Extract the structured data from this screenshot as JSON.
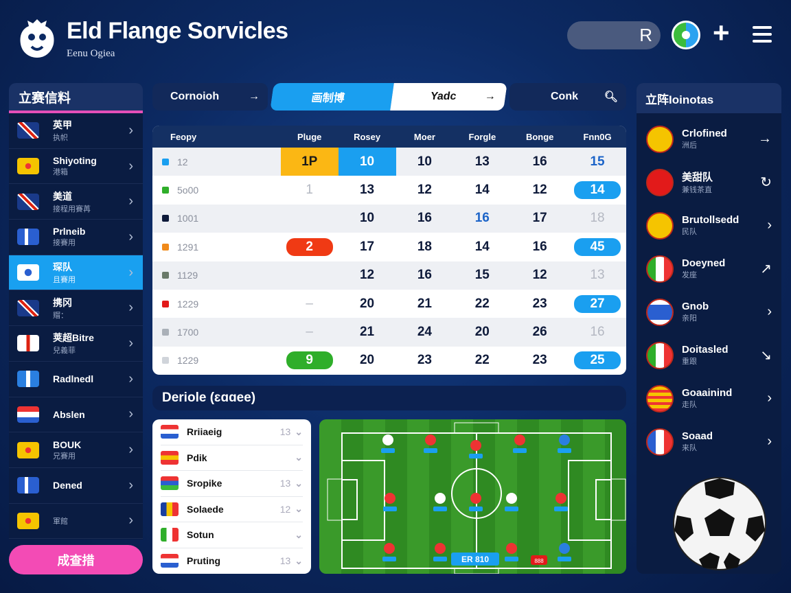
{
  "header": {
    "title": "Eld Flange Sorvicles",
    "subtitle": "Eenu Ogiea",
    "search_icon_glyph": "R",
    "icons": [
      "logo-crest-icon",
      "search-icon",
      "globe-icon",
      "plus-icon",
      "menu-icon"
    ]
  },
  "sidebar": {
    "title": "立赛信料",
    "button": "成查措",
    "accent": "#e44fb8",
    "items": [
      {
        "name": "英甲",
        "sub": "执帜",
        "flag": "uk"
      },
      {
        "name": "Shiyoting",
        "sub": "港箱",
        "flag": "shield"
      },
      {
        "name": "美道",
        "sub": "接程用賽苒",
        "flag": "uk"
      },
      {
        "name": "Prlneib",
        "sub": "接賽用",
        "flag": "cross-blue"
      },
      {
        "name": "琛队",
        "sub": "且賽用",
        "flag": "white-blue",
        "selected": true
      },
      {
        "name": "携冈",
        "sub": "赗：",
        "flag": "uk"
      },
      {
        "name": "荚超Bitre",
        "sub": "兒義菲",
        "flag": "england"
      },
      {
        "name": "Radlnedl",
        "sub": "",
        "flag": "blue-white"
      },
      {
        "name": "Abslen",
        "sub": "",
        "flag": "netherlands"
      },
      {
        "name": "BOUK",
        "sub": "兄賽用",
        "flag": "shield"
      },
      {
        "name": "Dened",
        "sub": "",
        "flag": "cross-blue"
      },
      {
        "name": "",
        "sub": "軍館",
        "flag": "shield"
      }
    ]
  },
  "tabs": {
    "tab1": "Cornoioh",
    "tab2a": "画制博",
    "tab2b": "Yadc",
    "tab3": "Conk"
  },
  "table": {
    "headers": [
      "Feopy",
      "Pluge",
      "Rosey",
      "Moer",
      "Forgle",
      "Bonge",
      "Fnn0G"
    ],
    "rows": [
      {
        "label": "12",
        "icon": "#1a9ff0",
        "cells": [
          {
            "v": "1P",
            "s": "yellow"
          },
          {
            "v": "10",
            "s": "bluefill"
          },
          {
            "v": "10"
          },
          {
            "v": "13"
          },
          {
            "v": "16"
          },
          {
            "v": "15",
            "s": "accent"
          }
        ]
      },
      {
        "label": "5o00",
        "icon": "#2fae2a",
        "cells": [
          {
            "v": "1",
            "s": "muted"
          },
          {
            "v": "13"
          },
          {
            "v": "12"
          },
          {
            "v": "14"
          },
          {
            "v": "12"
          },
          {
            "v": "14",
            "s": "pill-blue"
          }
        ]
      },
      {
        "label": "1001",
        "icon": "#0e1a3a",
        "cells": [
          {
            "v": ""
          },
          {
            "v": "10"
          },
          {
            "v": "16"
          },
          {
            "v": "16",
            "s": "accent"
          },
          {
            "v": "17"
          },
          {
            "v": "18",
            "s": "muted"
          }
        ]
      },
      {
        "label": "1291",
        "icon": "#f08a1a",
        "cells": [
          {
            "v": "2",
            "s": "pill-red"
          },
          {
            "v": "17"
          },
          {
            "v": "18"
          },
          {
            "v": "14"
          },
          {
            "v": "16"
          },
          {
            "v": "45",
            "s": "pill-blue"
          }
        ]
      },
      {
        "label": "1129",
        "icon": "#6a7a6a",
        "cells": [
          {
            "v": ""
          },
          {
            "v": "12"
          },
          {
            "v": "16"
          },
          {
            "v": "15"
          },
          {
            "v": "12"
          },
          {
            "v": "13",
            "s": "muted"
          }
        ]
      },
      {
        "label": "1229",
        "icon": "#e21a1a",
        "cells": [
          {
            "v": "–",
            "s": "muted"
          },
          {
            "v": "20"
          },
          {
            "v": "21"
          },
          {
            "v": "22"
          },
          {
            "v": "23"
          },
          {
            "v": "27",
            "s": "pill-blue"
          }
        ]
      },
      {
        "label": "1700",
        "icon": "#aab0b8",
        "cells": [
          {
            "v": "–",
            "s": "muted"
          },
          {
            "v": "21"
          },
          {
            "v": "24"
          },
          {
            "v": "20"
          },
          {
            "v": "26"
          },
          {
            "v": "16",
            "s": "muted"
          }
        ]
      },
      {
        "label": "1229",
        "icon": "#d0d4da",
        "cells": [
          {
            "v": "9",
            "s": "pill-green"
          },
          {
            "v": "20"
          },
          {
            "v": "23"
          },
          {
            "v": "22"
          },
          {
            "v": "23"
          },
          {
            "v": "25",
            "s": "pill-blue"
          }
        ]
      }
    ]
  },
  "section": {
    "title": "Deriole (ɛɑɑee)"
  },
  "lineup": [
    {
      "name": "Rriiaeig",
      "num": "13",
      "flag": [
        "#e33",
        "#fff",
        "#2a5fd0"
      ]
    },
    {
      "name": "Pdik",
      "num": "",
      "flag": [
        "#e33",
        "#f5c400",
        "#e33"
      ]
    },
    {
      "name": "Sropike",
      "num": "13",
      "flag": [
        "#e33",
        "#2a5fd0",
        "#3cbc3c"
      ]
    },
    {
      "name": "Solaede",
      "num": "12",
      "flag": [
        "#1a3fa0",
        "#f5c400",
        "#e33"
      ]
    },
    {
      "name": "Sotun",
      "num": "",
      "flag": [
        "#2fae2a",
        "#fff",
        "#e33"
      ]
    },
    {
      "name": "Pruting",
      "num": "13",
      "flag": [
        "#e33",
        "#fff",
        "#2a5fd0"
      ]
    }
  ],
  "pitch": {
    "score_label": "ER 810",
    "badge_label": "888"
  },
  "right_panel": {
    "title": "立阵Ioinotas",
    "items": [
      {
        "name": "Crlofined",
        "sub": "洲后",
        "badge": "#f5c400",
        "action": "→",
        "action_icon": "arrow-right-icon"
      },
      {
        "name": "美甜队",
        "sub": "兼钱茶直",
        "badge": "#e21a1a",
        "action": "↻",
        "action_icon": "refresh-icon"
      },
      {
        "name": "Brutollsedd",
        "sub": "民队",
        "badge": "#f5c400",
        "action": "›",
        "action_icon": "chevron-right-icon"
      },
      {
        "name": "Doeyned",
        "sub": "发座",
        "badge": "italy",
        "action": "↗",
        "action_icon": "expand-icon"
      },
      {
        "name": "Gnob",
        "sub": "亲阳",
        "badge": "israel",
        "action": "›",
        "action_icon": "chevron-right-icon"
      },
      {
        "name": "Doitasled",
        "sub": "重跟",
        "badge": "italy",
        "action": "↘",
        "action_icon": "collapse-icon"
      },
      {
        "name": "Goaainind",
        "sub": "走队",
        "badge": "stripes",
        "action": "›",
        "action_icon": "chevron-right-icon"
      },
      {
        "name": "Soaad",
        "sub": "来队",
        "badge": "france",
        "action": "›",
        "action_icon": "chevron-right-icon"
      }
    ]
  }
}
